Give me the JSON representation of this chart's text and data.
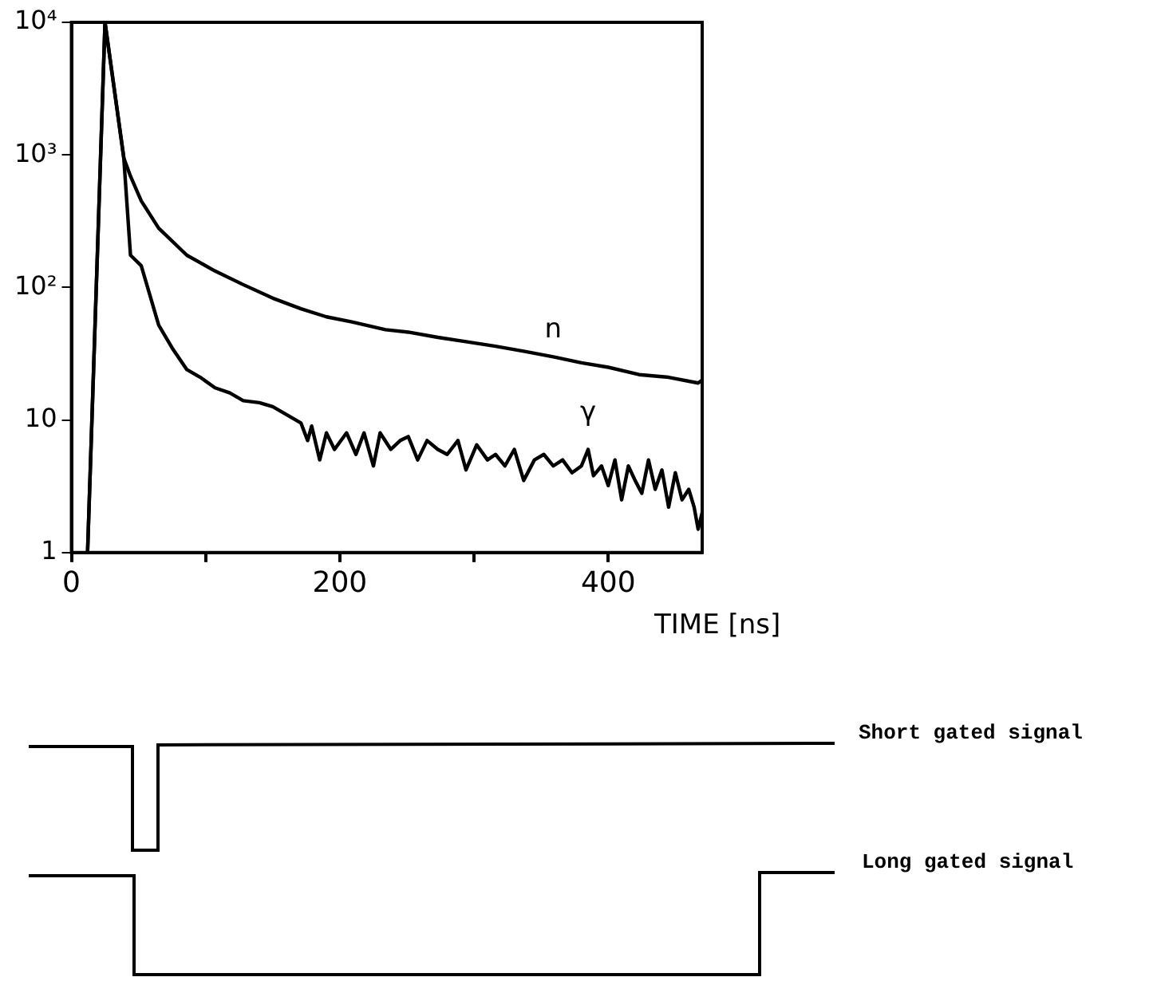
{
  "chart_data": {
    "type": "line",
    "xlabel": "TIME [ns]",
    "xlim": [
      0,
      470
    ],
    "xticks": [
      0,
      {
        "value": 100,
        "label": null
      },
      200,
      {
        "value": 300,
        "label": null
      },
      400
    ],
    "ylim": [
      1,
      10000
    ],
    "yticks": [
      1,
      10,
      {
        "value": 100,
        "label": "10²"
      },
      {
        "value": 1000,
        "label": "10³"
      },
      {
        "value": 10000,
        "label": "10⁴"
      }
    ],
    "log": "y",
    "grid": false,
    "legend": false,
    "marker": "none",
    "line_style": "solid",
    "series": [
      {
        "name": "n",
        "color": "#000000",
        "x": [
          12,
          25,
          39,
          44,
          52,
          65,
          86,
          107,
          128,
          150,
          171,
          190,
          209,
          234,
          251,
          273,
          294,
          316,
          337,
          359,
          380,
          400,
          423,
          445,
          467,
          470
        ],
        "values": [
          1,
          10000,
          950,
          690,
          450,
          280,
          175,
          133,
          105,
          83,
          69,
          60,
          55,
          48,
          46,
          42,
          39,
          36,
          33,
          30,
          27,
          25,
          22,
          21,
          19,
          20
        ]
      },
      {
        "name": "γ",
        "color": "#000000",
        "x": [
          12,
          25,
          39,
          44,
          52,
          65,
          75,
          86,
          96,
          107,
          118,
          128,
          140,
          150,
          160,
          171,
          176,
          179,
          185,
          190,
          196,
          205,
          212,
          218,
          225,
          230,
          238,
          245,
          251,
          258,
          265,
          273,
          280,
          288,
          294,
          302,
          310,
          316,
          323,
          330,
          337,
          345,
          352,
          359,
          366,
          373,
          380,
          385,
          389,
          395,
          400,
          405,
          410,
          415,
          420,
          425,
          430,
          435,
          440,
          445,
          450,
          455,
          460,
          464,
          467,
          470
        ],
        "values": [
          1,
          10000,
          950,
          175,
          146,
          52,
          35,
          24,
          21,
          17.5,
          16,
          14,
          13.5,
          12.6,
          11,
          9.5,
          7,
          9,
          5,
          8,
          6,
          8,
          5.5,
          8,
          4.5,
          8,
          6,
          7,
          7.5,
          5,
          7,
          6,
          5.5,
          7,
          4.2,
          6.5,
          5,
          5.5,
          4.5,
          6,
          3.5,
          5,
          5.5,
          4.5,
          5,
          4,
          4.5,
          6,
          3.8,
          4.5,
          3.2,
          5,
          2.5,
          4.5,
          3.5,
          2.8,
          5,
          3,
          4.2,
          2.2,
          4,
          2.5,
          3,
          2.2,
          1.5,
          2
        ]
      }
    ],
    "annotations": [
      "Short gated signal",
      "Long gated signal"
    ]
  }
}
